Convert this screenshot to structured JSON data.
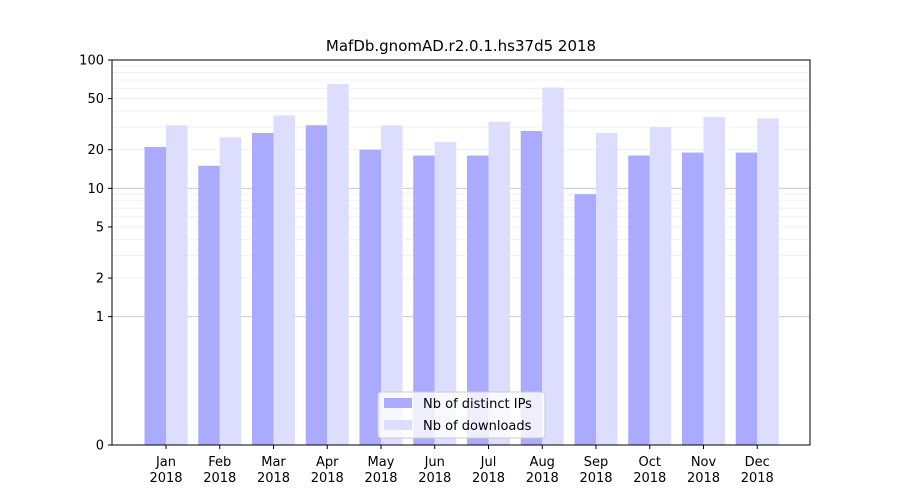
{
  "chart_data": {
    "type": "bar",
    "title": "MafDb.gnomAD.r2.0.1.hs37d5 2018",
    "xlabel": "",
    "ylabel": "",
    "y_scale": "symlog",
    "ylim": [
      0,
      100
    ],
    "y_ticks": [
      0,
      1,
      2,
      5,
      10,
      20,
      50,
      100
    ],
    "y_tick_labels": [
      "0",
      "1",
      "2",
      "5",
      "10",
      "20",
      "50",
      "100"
    ],
    "categories": [
      [
        "Jan",
        "2018"
      ],
      [
        "Feb",
        "2018"
      ],
      [
        "Mar",
        "2018"
      ],
      [
        "Apr",
        "2018"
      ],
      [
        "May",
        "2018"
      ],
      [
        "Jun",
        "2018"
      ],
      [
        "Jul",
        "2018"
      ],
      [
        "Aug",
        "2018"
      ],
      [
        "Sep",
        "2018"
      ],
      [
        "Oct",
        "2018"
      ],
      [
        "Nov",
        "2018"
      ],
      [
        "Dec",
        "2018"
      ]
    ],
    "series": [
      {
        "name": "Nb of distinct IPs",
        "color": "#aaaaff",
        "values": [
          21,
          15,
          27,
          31,
          20,
          18,
          18,
          28,
          9,
          18,
          19,
          19
        ]
      },
      {
        "name": "Nb of downloads",
        "color": "#ddddff",
        "values": [
          31,
          25,
          37,
          65,
          31,
          23,
          33,
          61,
          27,
          30,
          36,
          35
        ]
      }
    ],
    "grid": true,
    "legend_position": "bottom-center"
  }
}
